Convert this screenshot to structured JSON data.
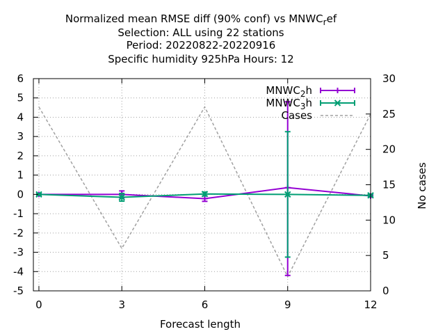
{
  "chart_data": {
    "type": "line",
    "title_lines": [
      "Normalized mean RMSE diff (90% conf) vs MNWC_ref",
      "Selection: ALL using    22 stations",
      "Period: 20220822-20220916",
      "Specific humidity 925hPa   Hours:  12"
    ],
    "xlabel": "Forecast length",
    "ylabel_right": "No cases",
    "xlim": [
      -0.2,
      12.0
    ],
    "ylim": [
      -5,
      6
    ],
    "y2lim": [
      0,
      30
    ],
    "x_ticks": [
      0,
      3,
      6,
      9,
      12
    ],
    "y_ticks": [
      6,
      5,
      4,
      3,
      2,
      1,
      0,
      -1,
      -2,
      -3,
      -4,
      -5
    ],
    "y2_ticks": [
      30,
      25,
      20,
      15,
      10,
      5,
      0
    ],
    "grid": true,
    "legend_position": "top-right",
    "series": [
      {
        "name": "MNWC_2h",
        "name_main": "MNWC",
        "name_sub": "2",
        "name_tail": "h",
        "color": "#9400d3",
        "marker": "plus",
        "x": [
          0,
          3,
          6,
          9,
          12
        ],
        "y": [
          0.0,
          0.0,
          -0.22,
          0.35,
          -0.08
        ],
        "err_low": [
          -0.05,
          -0.18,
          -0.36,
          -4.2,
          -0.14
        ],
        "err_high": [
          0.05,
          0.18,
          -0.08,
          4.8,
          -0.02
        ]
      },
      {
        "name": "MNWC_3h",
        "name_main": "MNWC",
        "name_sub": "3",
        "name_tail": "h",
        "color": "#009e73",
        "marker": "cross",
        "x": [
          0,
          3,
          6,
          9,
          12
        ],
        "y": [
          0.0,
          -0.15,
          0.02,
          0.0,
          -0.05
        ],
        "err_low": [
          -0.05,
          -0.35,
          -0.08,
          -3.25,
          -0.1
        ],
        "err_high": [
          0.05,
          0.05,
          0.12,
          3.25,
          0.0
        ]
      },
      {
        "name": "Cases",
        "color": "#a0a0a0",
        "dashed": true,
        "axis": "right",
        "x": [
          0,
          3,
          6,
          9,
          12
        ],
        "y": [
          26,
          6,
          26,
          2,
          25
        ]
      }
    ]
  }
}
